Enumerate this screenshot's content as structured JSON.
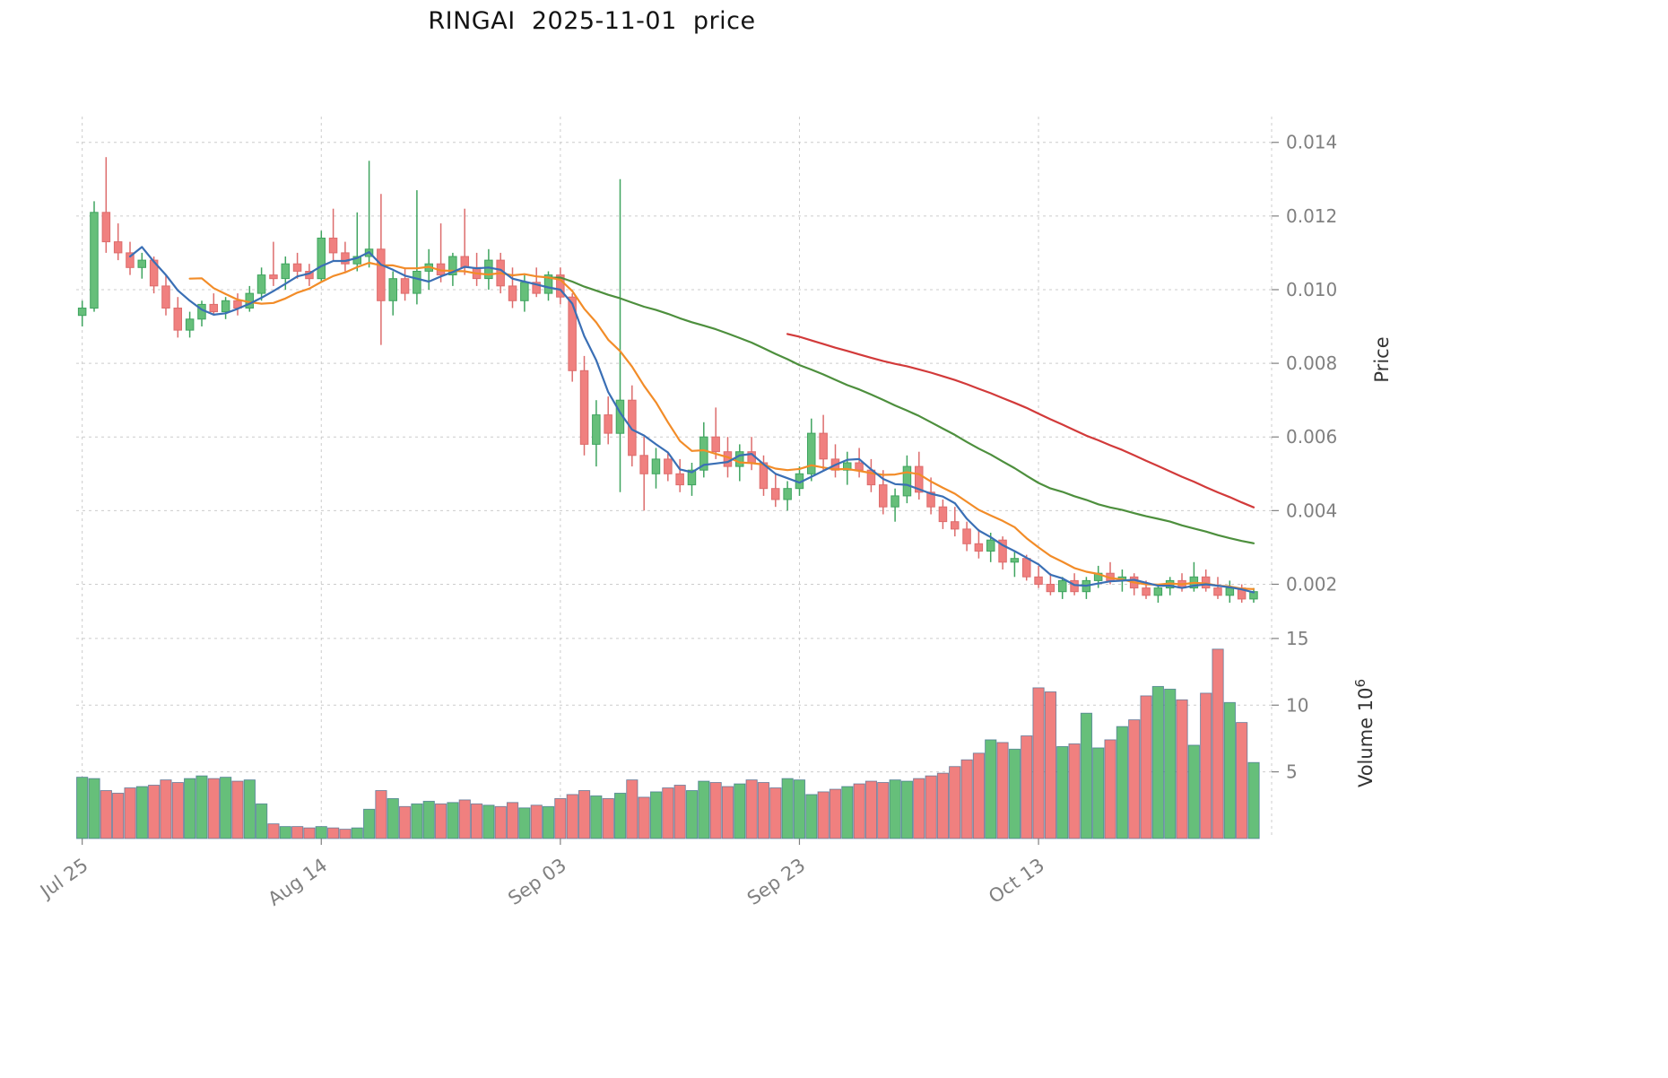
{
  "title": "RINGAI  2025-11-01  price",
  "axes": {
    "price_label": "Price",
    "volume_label_prefix": "Volume ",
    "volume_base": "10",
    "volume_exponent": "6",
    "price_ticks": [
      {
        "label": "0.014",
        "value": 0.014
      },
      {
        "label": "0.012",
        "value": 0.012
      },
      {
        "label": "0.010",
        "value": 0.01
      },
      {
        "label": "0.008",
        "value": 0.008
      },
      {
        "label": "0.006",
        "value": 0.006
      },
      {
        "label": "0.004",
        "value": 0.004
      },
      {
        "label": "0.002",
        "value": 0.002
      }
    ],
    "volume_ticks": [
      {
        "label": "15",
        "value": 15
      },
      {
        "label": "10",
        "value": 10
      },
      {
        "label": "5",
        "value": 5
      }
    ],
    "x_ticks": [
      {
        "label": "Jul 25",
        "index": 0
      },
      {
        "label": "Aug 14",
        "index": 20
      },
      {
        "label": "Sep 03",
        "index": 40
      },
      {
        "label": "Sep 23",
        "index": 60
      },
      {
        "label": "Oct 13",
        "index": 80
      }
    ]
  },
  "colors": {
    "up": "#66bf7a",
    "up_edge": "#3fa45f",
    "down": "#f0807f",
    "down_edge": "#dd6c6c",
    "volume_edge": "#35648c",
    "grid": "#cccccc",
    "tick_text": "#808080",
    "axis_label_text": "#333333",
    "title_text": "#141414"
  },
  "chart_data": {
    "type": "candlestick",
    "has_volume_panel": true,
    "x": {
      "start_date": "2025-07-25",
      "freq": "daily",
      "count": 99
    },
    "ylim_price": [
      0.0015,
      0.0147
    ],
    "ylim_volume_millions": [
      0,
      15.8
    ],
    "grid": "dashed",
    "open": [
      0.0093,
      0.0095,
      0.0121,
      0.0113,
      0.011,
      0.0106,
      0.0108,
      0.0101,
      0.0095,
      0.0089,
      0.0092,
      0.0096,
      0.0094,
      0.0097,
      0.0095,
      0.0099,
      0.0104,
      0.0103,
      0.0107,
      0.0105,
      0.0103,
      0.0114,
      0.011,
      0.0107,
      0.0109,
      0.0111,
      0.0097,
      0.0103,
      0.0099,
      0.0105,
      0.0107,
      0.0104,
      0.0109,
      0.0106,
      0.0103,
      0.0108,
      0.0101,
      0.0097,
      0.0102,
      0.0099,
      0.0104,
      0.0098,
      0.0078,
      0.0058,
      0.0066,
      0.0061,
      0.007,
      0.0055,
      0.005,
      0.0054,
      0.005,
      0.0047,
      0.0051,
      0.006,
      0.0056,
      0.0052,
      0.0056,
      0.0053,
      0.0046,
      0.0043,
      0.0046,
      0.005,
      0.0061,
      0.0054,
      0.0051,
      0.0053,
      0.0051,
      0.0047,
      0.0041,
      0.0044,
      0.0052,
      0.0045,
      0.0041,
      0.0037,
      0.0035,
      0.0031,
      0.0029,
      0.0032,
      0.0026,
      0.0027,
      0.0022,
      0.002,
      0.0018,
      0.0021,
      0.0018,
      0.0021,
      0.0023,
      0.0021,
      0.0022,
      0.0019,
      0.0017,
      0.0019,
      0.0021,
      0.0019,
      0.0022,
      0.0019,
      0.0017,
      0.0019,
      0.0016
    ],
    "high": [
      0.0097,
      0.0124,
      0.0136,
      0.0118,
      0.0113,
      0.011,
      0.0109,
      0.0104,
      0.0098,
      0.0094,
      0.0097,
      0.0099,
      0.0098,
      0.0099,
      0.0101,
      0.0106,
      0.0113,
      0.0109,
      0.011,
      0.0107,
      0.0116,
      0.0122,
      0.0113,
      0.0121,
      0.0135,
      0.0126,
      0.0105,
      0.0106,
      0.0127,
      0.0111,
      0.0118,
      0.011,
      0.0122,
      0.011,
      0.0111,
      0.011,
      0.0106,
      0.0104,
      0.0106,
      0.0105,
      0.0106,
      0.0099,
      0.0082,
      0.007,
      0.0071,
      0.013,
      0.0074,
      0.006,
      0.0057,
      0.0056,
      0.0054,
      0.0053,
      0.0064,
      0.0068,
      0.006,
      0.0058,
      0.006,
      0.0055,
      0.005,
      0.0048,
      0.0052,
      0.0065,
      0.0066,
      0.0058,
      0.0056,
      0.0057,
      0.0054,
      0.0051,
      0.0046,
      0.0055,
      0.0056,
      0.0049,
      0.0043,
      0.0041,
      0.0037,
      0.0035,
      0.0034,
      0.0033,
      0.0029,
      0.0028,
      0.0025,
      0.0023,
      0.0022,
      0.0023,
      0.0022,
      0.0025,
      0.0026,
      0.0024,
      0.0023,
      0.0021,
      0.002,
      0.0022,
      0.0023,
      0.0026,
      0.0024,
      0.0022,
      0.0021,
      0.002,
      0.0019
    ],
    "low": [
      0.009,
      0.0094,
      0.011,
      0.0108,
      0.0104,
      0.0103,
      0.0099,
      0.0093,
      0.0087,
      0.0087,
      0.009,
      0.0093,
      0.0092,
      0.0093,
      0.0094,
      0.0097,
      0.0101,
      0.01,
      0.0103,
      0.0101,
      0.0102,
      0.0108,
      0.0105,
      0.0105,
      0.0106,
      0.0085,
      0.0093,
      0.0097,
      0.0096,
      0.01,
      0.0102,
      0.0101,
      0.0104,
      0.0101,
      0.01,
      0.0099,
      0.0095,
      0.0094,
      0.0098,
      0.0097,
      0.0096,
      0.0075,
      0.0055,
      0.0052,
      0.0058,
      0.0045,
      0.0052,
      0.004,
      0.0046,
      0.0048,
      0.0045,
      0.0044,
      0.0049,
      0.0054,
      0.0049,
      0.0048,
      0.0051,
      0.0044,
      0.0041,
      0.004,
      0.0044,
      0.0048,
      0.0051,
      0.0049,
      0.0047,
      0.0049,
      0.0045,
      0.0039,
      0.0037,
      0.0042,
      0.0043,
      0.0039,
      0.0035,
      0.0033,
      0.0029,
      0.0027,
      0.0026,
      0.0024,
      0.0022,
      0.0021,
      0.0019,
      0.0017,
      0.0016,
      0.0017,
      0.0016,
      0.0019,
      0.002,
      0.0018,
      0.0017,
      0.0016,
      0.0015,
      0.0017,
      0.0018,
      0.0018,
      0.0018,
      0.0016,
      0.0015,
      0.0015,
      0.0015
    ],
    "close": [
      0.0095,
      0.0121,
      0.0113,
      0.011,
      0.0106,
      0.0108,
      0.0101,
      0.0095,
      0.0089,
      0.0092,
      0.0096,
      0.0094,
      0.0097,
      0.0095,
      0.0099,
      0.0104,
      0.0103,
      0.0107,
      0.0105,
      0.0103,
      0.0114,
      0.011,
      0.0107,
      0.0109,
      0.0111,
      0.0097,
      0.0103,
      0.0099,
      0.0105,
      0.0107,
      0.0104,
      0.0109,
      0.0106,
      0.0103,
      0.0108,
      0.0101,
      0.0097,
      0.0102,
      0.0099,
      0.0104,
      0.0098,
      0.0078,
      0.0058,
      0.0066,
      0.0061,
      0.007,
      0.0055,
      0.005,
      0.0054,
      0.005,
      0.0047,
      0.0051,
      0.006,
      0.0056,
      0.0052,
      0.0056,
      0.0053,
      0.0046,
      0.0043,
      0.0046,
      0.005,
      0.0061,
      0.0054,
      0.0051,
      0.0053,
      0.0051,
      0.0047,
      0.0041,
      0.0044,
      0.0052,
      0.0045,
      0.0041,
      0.0037,
      0.0035,
      0.0031,
      0.0029,
      0.0032,
      0.0026,
      0.0027,
      0.0022,
      0.002,
      0.0018,
      0.0021,
      0.0018,
      0.0021,
      0.0023,
      0.0021,
      0.0022,
      0.0019,
      0.0017,
      0.0019,
      0.0021,
      0.0019,
      0.0022,
      0.0019,
      0.0017,
      0.0019,
      0.0016,
      0.0018
    ],
    "volume_millions": [
      4.6,
      4.5,
      3.6,
      3.4,
      3.8,
      3.9,
      4.0,
      4.4,
      4.2,
      4.5,
      4.7,
      4.5,
      4.6,
      4.3,
      4.4,
      2.6,
      1.1,
      0.9,
      0.9,
      0.8,
      0.9,
      0.8,
      0.7,
      0.8,
      2.2,
      3.6,
      3.0,
      2.4,
      2.6,
      2.8,
      2.6,
      2.7,
      2.9,
      2.6,
      2.5,
      2.4,
      2.7,
      2.3,
      2.5,
      2.4,
      3.0,
      3.3,
      3.6,
      3.2,
      3.0,
      3.4,
      4.4,
      3.1,
      3.5,
      3.8,
      4.0,
      3.6,
      4.3,
      4.2,
      3.9,
      4.1,
      4.4,
      4.2,
      3.8,
      4.5,
      4.4,
      3.3,
      3.5,
      3.7,
      3.9,
      4.1,
      4.3,
      4.2,
      4.4,
      4.3,
      4.5,
      4.7,
      4.9,
      5.4,
      5.9,
      6.4,
      7.4,
      7.2,
      6.7,
      7.7,
      11.3,
      11.0,
      6.9,
      7.1,
      9.4,
      6.8,
      7.4,
      8.4,
      8.9,
      10.7,
      11.4,
      11.2,
      10.4,
      7.0,
      10.9,
      14.2,
      10.2,
      8.7,
      5.7
    ],
    "moving_averages": [
      {
        "name": "short-ma",
        "window": 5,
        "color": "#3a6fb5"
      },
      {
        "name": "mid-ma",
        "window": 10,
        "color": "#f28c28"
      },
      {
        "name": "long-ma",
        "window": 40,
        "color": "#4d8f3d"
      },
      {
        "name": "very-long-ma",
        "window": 60,
        "color": "#d23a3a"
      }
    ]
  }
}
